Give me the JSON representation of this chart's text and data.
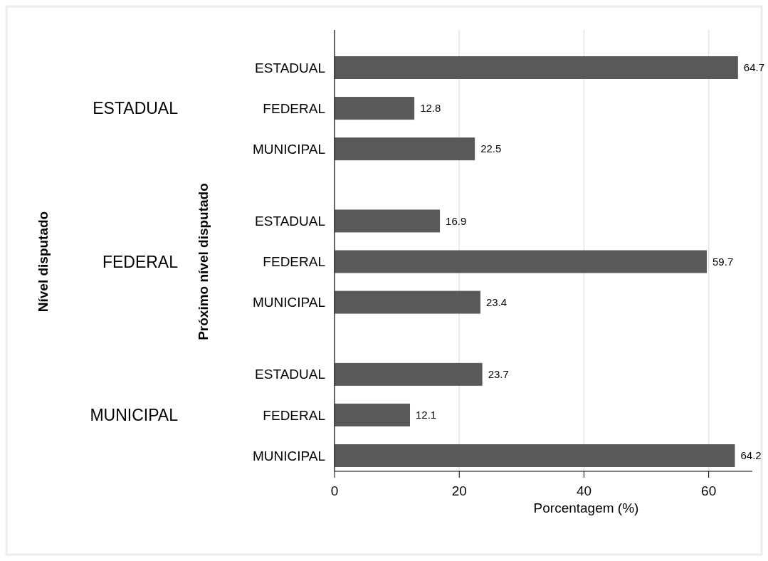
{
  "chart_data": {
    "type": "bar",
    "orientation": "horizontal",
    "categories": [
      "ESTADUAL",
      "FEDERAL",
      "MUNICIPAL",
      "ESTADUAL",
      "FEDERAL",
      "MUNICIPAL",
      "ESTADUAL",
      "FEDERAL",
      "MUNICIPAL"
    ],
    "values": [
      64.7,
      12.8,
      22.5,
      16.9,
      59.7,
      23.4,
      23.7,
      12.1,
      64.2
    ],
    "color": "#595959",
    "xlim": [
      0,
      67
    ],
    "xticks": [
      0,
      20,
      40,
      60
    ],
    "xlabel": "Porcentagem (%)",
    "ylabel": "Próximo nível disputado",
    "annotations": [
      "Nível disputado",
      "ESTADUAL",
      "FEDERAL",
      "MUNICIPAL"
    ],
    "grid": "x",
    "data_labels": true
  }
}
